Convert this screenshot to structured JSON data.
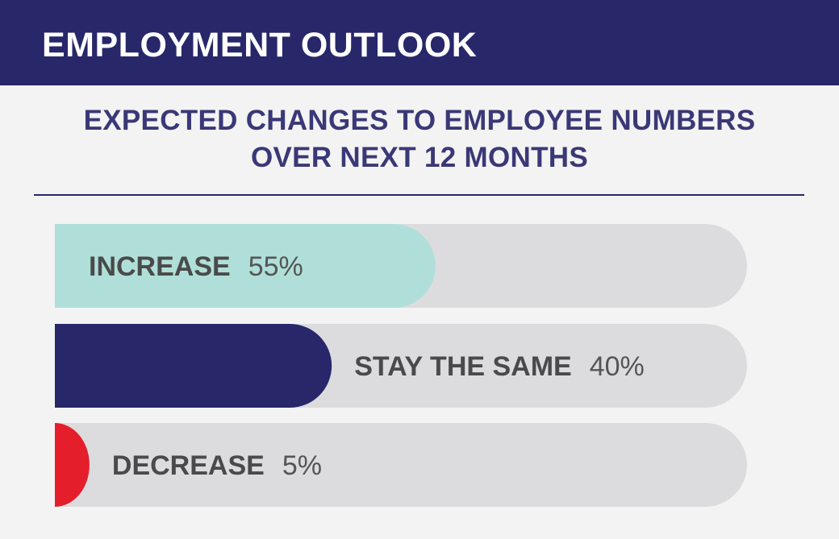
{
  "header": {
    "title": "EMPLOYMENT OUTLOOK"
  },
  "colors": {
    "header_bg": "#27276a",
    "track": "#dcdcdf",
    "increase": "#b0dfd9",
    "stay_the_same": "#27276a",
    "decrease": "#e41f2b"
  },
  "chart_data": {
    "type": "bar",
    "orientation": "horizontal",
    "title_lines": [
      "EXPECTED CHANGES TO EMPLOYEE NUMBERS",
      "OVER NEXT 12 MONTHS"
    ],
    "categories": [
      "INCREASE",
      "STAY THE SAME",
      "DECREASE"
    ],
    "values": [
      55,
      40,
      5
    ],
    "value_labels": [
      "55%",
      "40%",
      "5%"
    ],
    "colors": [
      "#b0dfd9",
      "#27276a",
      "#e41f2b"
    ],
    "xlim": [
      0,
      100
    ],
    "grid": false,
    "legend": "none"
  }
}
